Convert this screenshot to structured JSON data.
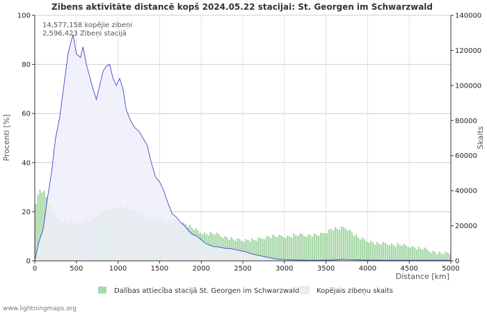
{
  "chart_data": {
    "type": "bar+area",
    "title": "Zibens aktivitāte distancē kopš 2024.05.22 stacijai: St. Georgen im Schwarzwald",
    "xlabel": "Distance   [km]",
    "ylabel_left": "Procenti   [%]",
    "ylabel_right": "Skaits",
    "xlim": [
      0,
      5000
    ],
    "ylim_left": [
      0,
      100
    ],
    "ylim_right": [
      0,
      140000
    ],
    "x_ticks": [
      "0",
      "500",
      "1000",
      "1500",
      "2000",
      "2500",
      "3000",
      "3500",
      "4000",
      "4500",
      "5000"
    ],
    "y_left_ticks": [
      "0",
      "20",
      "40",
      "60",
      "80",
      "100"
    ],
    "y_right_ticks": [
      "0",
      "20000",
      "40000",
      "60000",
      "80000",
      "100000",
      "120000",
      "140000"
    ],
    "annotations": [
      "14,577,158 kopējie zibeņi",
      "2,596,423 Zibeņi stacijā"
    ],
    "series": [
      {
        "name": "Dalības attiecība stacijā St. Georgen im Schwarzwald",
        "kind": "bar",
        "axis": "left",
        "color": "#a8d8a8",
        "points": [
          [
            0,
            24
          ],
          [
            50,
            29
          ],
          [
            100,
            28
          ],
          [
            150,
            24
          ],
          [
            200,
            20
          ],
          [
            250,
            18
          ],
          [
            300,
            16.5
          ],
          [
            350,
            16
          ],
          [
            400,
            15.5
          ],
          [
            450,
            15.5
          ],
          [
            500,
            15.5
          ],
          [
            550,
            15.5
          ],
          [
            600,
            16
          ],
          [
            650,
            16.5
          ],
          [
            700,
            17.5
          ],
          [
            750,
            18.5
          ],
          [
            800,
            19.5
          ],
          [
            850,
            20
          ],
          [
            900,
            21
          ],
          [
            950,
            21.5
          ],
          [
            1000,
            22
          ],
          [
            1050,
            22
          ],
          [
            1100,
            22
          ],
          [
            1150,
            21
          ],
          [
            1200,
            20
          ],
          [
            1250,
            19
          ],
          [
            1300,
            18.5
          ],
          [
            1350,
            18
          ],
          [
            1400,
            17.5
          ],
          [
            1450,
            17
          ],
          [
            1500,
            17
          ],
          [
            1550,
            16.5
          ],
          [
            1600,
            16
          ],
          [
            1650,
            16
          ],
          [
            1700,
            16
          ],
          [
            1750,
            15.5
          ],
          [
            1800,
            15
          ],
          [
            1850,
            14
          ],
          [
            1900,
            13
          ],
          [
            1950,
            12
          ],
          [
            2000,
            11.5
          ],
          [
            2050,
            11
          ],
          [
            2100,
            11
          ],
          [
            2150,
            11
          ],
          [
            2200,
            10.5
          ],
          [
            2250,
            10
          ],
          [
            2300,
            9.5
          ],
          [
            2350,
            9
          ],
          [
            2400,
            8.5
          ],
          [
            2450,
            8.5
          ],
          [
            2500,
            8.5
          ],
          [
            2550,
            8.5
          ],
          [
            2600,
            8.5
          ],
          [
            2650,
            8.5
          ],
          [
            2700,
            9
          ],
          [
            2750,
            9.5
          ],
          [
            2800,
            10
          ],
          [
            2850,
            10
          ],
          [
            2900,
            10
          ],
          [
            2950,
            10
          ],
          [
            3000,
            10
          ],
          [
            3050,
            10
          ],
          [
            3100,
            10.5
          ],
          [
            3150,
            10.5
          ],
          [
            3200,
            10.5
          ],
          [
            3250,
            10.5
          ],
          [
            3300,
            10.5
          ],
          [
            3350,
            10.5
          ],
          [
            3400,
            10.5
          ],
          [
            3450,
            11
          ],
          [
            3500,
            12
          ],
          [
            3550,
            13
          ],
          [
            3600,
            13
          ],
          [
            3650,
            13
          ],
          [
            3700,
            13.5
          ],
          [
            3750,
            13
          ],
          [
            3800,
            11.5
          ],
          [
            3850,
            10
          ],
          [
            3900,
            9
          ],
          [
            3950,
            8.5
          ],
          [
            4000,
            8
          ],
          [
            4050,
            7.5
          ],
          [
            4100,
            7
          ],
          [
            4150,
            7
          ],
          [
            4200,
            7
          ],
          [
            4250,
            7
          ],
          [
            4300,
            6.5
          ],
          [
            4350,
            6.5
          ],
          [
            4400,
            6.5
          ],
          [
            4450,
            6
          ],
          [
            4500,
            6
          ],
          [
            4550,
            5.5
          ],
          [
            4600,
            5
          ],
          [
            4650,
            5
          ],
          [
            4700,
            4.5
          ],
          [
            4750,
            4
          ],
          [
            4800,
            3.5
          ],
          [
            4850,
            3
          ],
          [
            4900,
            3
          ],
          [
            4950,
            3
          ]
        ]
      },
      {
        "name": "Kopējais zibeņu skaits",
        "kind": "area",
        "axis": "right",
        "color": "#4444cc",
        "fill": "#eeeefa",
        "points": [
          [
            0,
            0
          ],
          [
            50,
            11000
          ],
          [
            100,
            18000
          ],
          [
            150,
            35000
          ],
          [
            200,
            50000
          ],
          [
            250,
            70000
          ],
          [
            300,
            82000
          ],
          [
            350,
            100000
          ],
          [
            400,
            118000
          ],
          [
            430,
            124000
          ],
          [
            460,
            129000
          ],
          [
            500,
            118000
          ],
          [
            550,
            116000
          ],
          [
            580,
            122000
          ],
          [
            620,
            112000
          ],
          [
            660,
            105000
          ],
          [
            700,
            98000
          ],
          [
            740,
            92000
          ],
          [
            780,
            100000
          ],
          [
            820,
            108000
          ],
          [
            860,
            111000
          ],
          [
            900,
            112000
          ],
          [
            940,
            104000
          ],
          [
            980,
            100000
          ],
          [
            1020,
            104000
          ],
          [
            1060,
            98000
          ],
          [
            1100,
            86000
          ],
          [
            1150,
            80000
          ],
          [
            1200,
            76000
          ],
          [
            1250,
            74000
          ],
          [
            1300,
            70000
          ],
          [
            1350,
            66000
          ],
          [
            1400,
            56000
          ],
          [
            1450,
            48000
          ],
          [
            1500,
            45000
          ],
          [
            1550,
            40000
          ],
          [
            1600,
            33000
          ],
          [
            1650,
            27000
          ],
          [
            1700,
            25000
          ],
          [
            1750,
            22000
          ],
          [
            1800,
            20000
          ],
          [
            1850,
            17000
          ],
          [
            1900,
            15000
          ],
          [
            1950,
            14000
          ],
          [
            2000,
            12000
          ],
          [
            2050,
            10000
          ],
          [
            2100,
            9000
          ],
          [
            2150,
            8000
          ],
          [
            2200,
            8000
          ],
          [
            2250,
            7500
          ],
          [
            2300,
            7000
          ],
          [
            2350,
            7000
          ],
          [
            2400,
            6500
          ],
          [
            2450,
            6000
          ],
          [
            2500,
            5500
          ],
          [
            2550,
            5000
          ],
          [
            2600,
            4000
          ],
          [
            2650,
            3500
          ],
          [
            2700,
            3000
          ],
          [
            2750,
            2500
          ],
          [
            2800,
            2000
          ],
          [
            2850,
            1500
          ],
          [
            2900,
            1000
          ],
          [
            3000,
            700
          ],
          [
            3100,
            500
          ],
          [
            3200,
            400
          ],
          [
            3300,
            300
          ],
          [
            3400,
            300
          ],
          [
            3500,
            400
          ],
          [
            3600,
            500
          ],
          [
            3700,
            800
          ],
          [
            3800,
            600
          ],
          [
            3900,
            500
          ],
          [
            4000,
            400
          ],
          [
            4100,
            400
          ],
          [
            4200,
            300
          ],
          [
            4300,
            300
          ],
          [
            4400,
            300
          ],
          [
            4500,
            300
          ],
          [
            4600,
            300
          ],
          [
            4700,
            300
          ],
          [
            4800,
            300
          ],
          [
            4900,
            300
          ],
          [
            5000,
            300
          ]
        ]
      }
    ],
    "footer": "www.lightningmaps.org"
  }
}
